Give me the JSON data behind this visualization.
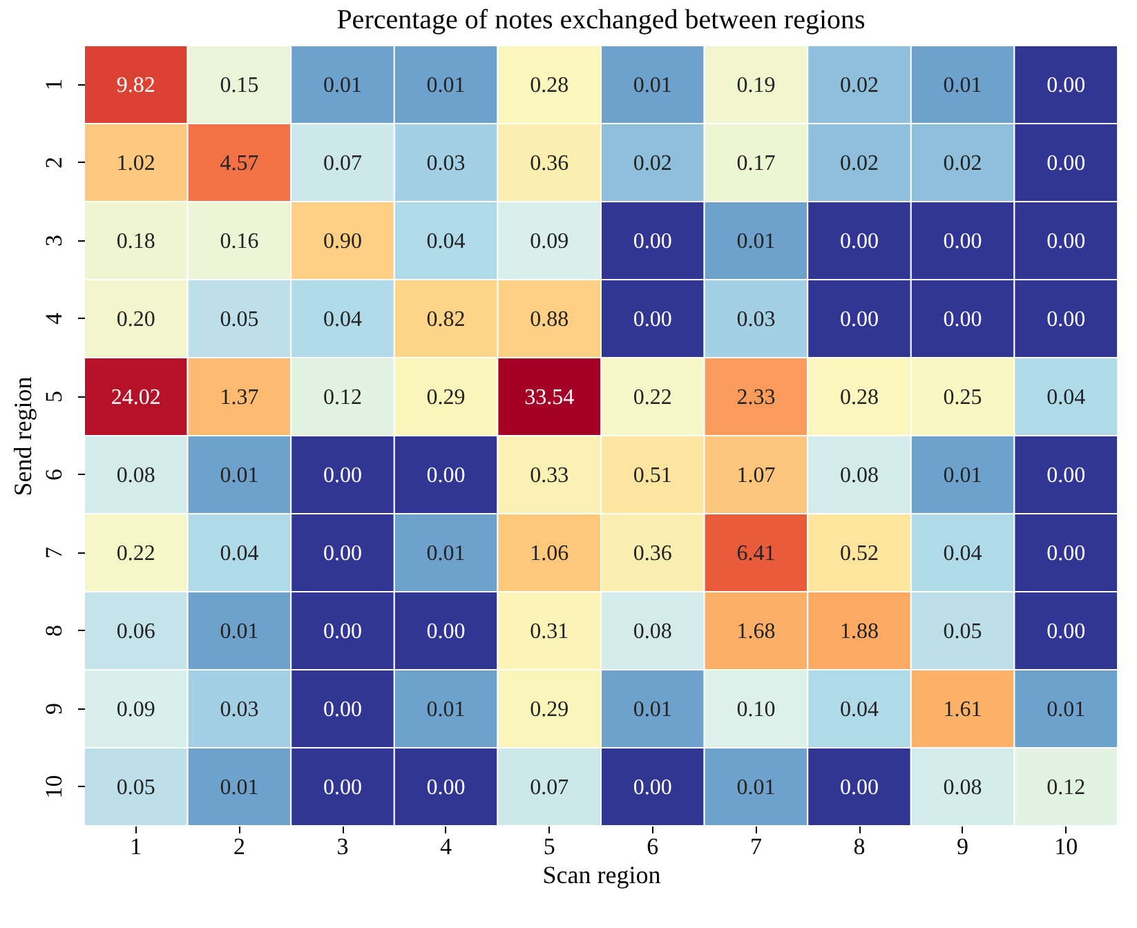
{
  "chart_data": {
    "type": "heatmap",
    "title": "Percentage of notes exchanged between regions",
    "xlabel": "Scan region",
    "ylabel": "Send region",
    "categories": [
      "1",
      "2",
      "3",
      "4",
      "5",
      "6",
      "7",
      "8",
      "9",
      "10"
    ],
    "y_categories": [
      "1",
      "2",
      "3",
      "4",
      "5",
      "6",
      "7",
      "8",
      "9",
      "10"
    ],
    "data_labels": true,
    "cell_labels": [
      [
        "9.82",
        "0.15",
        "0.01",
        "0.01",
        "0.28",
        "0.01",
        "0.19",
        "0.02",
        "0.01",
        "0.00"
      ],
      [
        "1.02",
        "4.57",
        "0.07",
        "0.03",
        "0.36",
        "0.02",
        "0.17",
        "0.02",
        "0.02",
        "0.00"
      ],
      [
        "0.18",
        "0.16",
        "0.90",
        "0.04",
        "0.09",
        "0.00",
        "0.01",
        "0.00",
        "0.00",
        "0.00"
      ],
      [
        "0.20",
        "0.05",
        "0.04",
        "0.82",
        "0.88",
        "0.00",
        "0.03",
        "0.00",
        "0.00",
        "0.00"
      ],
      [
        "24.02",
        "1.37",
        "0.12",
        "0.29",
        "33.54",
        "0.22",
        "2.33",
        "0.28",
        "0.25",
        "0.04"
      ],
      [
        "0.08",
        "0.01",
        "0.00",
        "0.00",
        "0.33",
        "0.51",
        "1.07",
        "0.08",
        "0.01",
        "0.00"
      ],
      [
        "0.22",
        "0.04",
        "0.00",
        "0.01",
        "1.06",
        "0.36",
        "6.41",
        "0.52",
        "0.04",
        "0.00"
      ],
      [
        "0.06",
        "0.01",
        "0.00",
        "0.00",
        "0.31",
        "0.08",
        "1.68",
        "1.88",
        "0.05",
        "0.00"
      ],
      [
        "0.09",
        "0.03",
        "0.00",
        "0.01",
        "0.29",
        "0.01",
        "0.10",
        "0.04",
        "1.61",
        "0.01"
      ],
      [
        "0.05",
        "0.01",
        "0.00",
        "0.00",
        "0.07",
        "0.00",
        "0.01",
        "0.00",
        "0.08",
        "0.12"
      ]
    ],
    "cells": [
      [
        9.82,
        0.15,
        0.01,
        0.01,
        0.28,
        0.01,
        0.19,
        0.02,
        0.01,
        0.0
      ],
      [
        1.02,
        4.57,
        0.07,
        0.03,
        0.36,
        0.02,
        0.17,
        0.02,
        0.02,
        0.0
      ],
      [
        0.18,
        0.16,
        0.9,
        0.04,
        0.09,
        0.0,
        0.01,
        0.0,
        0.0,
        0.0
      ],
      [
        0.2,
        0.05,
        0.04,
        0.82,
        0.88,
        0.0,
        0.03,
        0.0,
        0.0,
        0.0
      ],
      [
        24.02,
        1.37,
        0.12,
        0.29,
        33.54,
        0.22,
        2.33,
        0.28,
        0.25,
        0.04
      ],
      [
        0.08,
        0.01,
        0.0,
        0.0,
        0.33,
        0.51,
        1.07,
        0.08,
        0.01,
        0.0
      ],
      [
        0.22,
        0.04,
        0.0,
        0.01,
        1.06,
        0.36,
        6.41,
        0.52,
        0.04,
        0.0
      ],
      [
        0.06,
        0.01,
        0.0,
        0.0,
        0.31,
        0.08,
        1.68,
        1.88,
        0.05,
        0.0
      ],
      [
        0.09,
        0.03,
        0.0,
        0.01,
        0.29,
        0.01,
        0.1,
        0.04,
        1.61,
        0.01
      ],
      [
        0.05,
        0.01,
        0.0,
        0.0,
        0.07,
        0.0,
        0.01,
        0.0,
        0.08,
        0.12
      ]
    ]
  }
}
